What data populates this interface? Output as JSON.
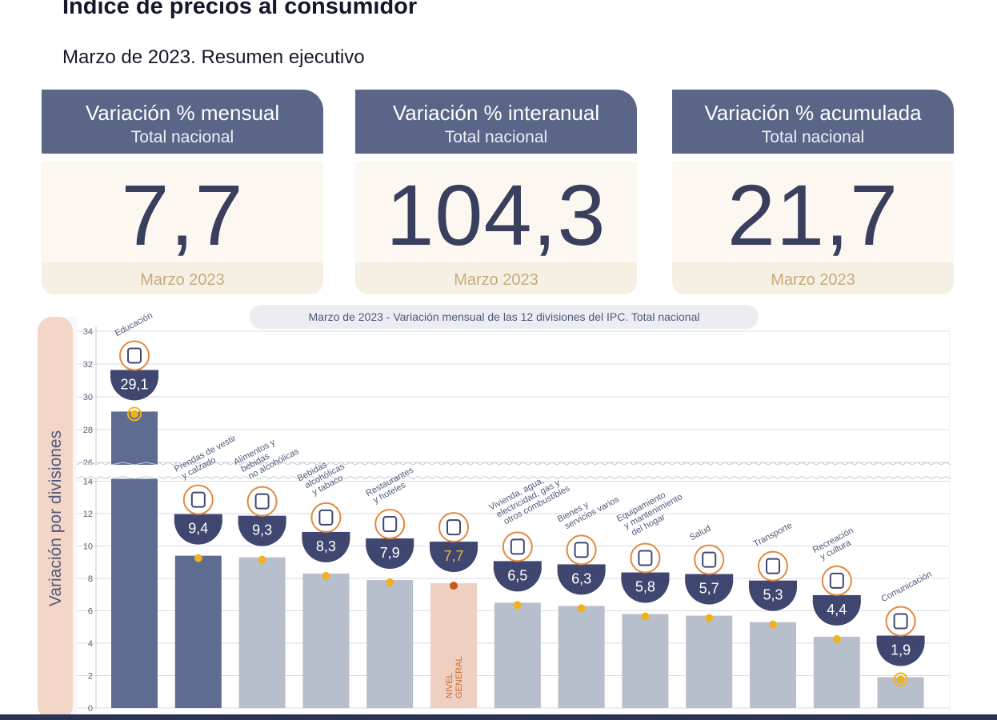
{
  "header": {
    "title": "Índice de precios al consumidor",
    "subtitle": "Marzo de 2023. Resumen ejecutivo"
  },
  "kpis": [
    {
      "title": "Variación % mensual",
      "subtitle": "Total nacional",
      "value": "7,7",
      "period": "Marzo 2023"
    },
    {
      "title": "Variación % interanual",
      "subtitle": "Total nacional",
      "value": "104,3",
      "period": "Marzo 2023"
    },
    {
      "title": "Variación % acumulada",
      "subtitle": "Total nacional",
      "value": "21,7",
      "period": "Marzo 2023"
    }
  ],
  "colors": {
    "header_blue": "#5a6588",
    "bar_dark": "#5f6c92",
    "bar_light": "#b8bfcc",
    "bar_general": "#efcfbf",
    "marker": "#efb21f",
    "marker_general": "#c95a1c",
    "axis_panel": "#f3d6c7",
    "icon_orange": "#e3883e"
  },
  "chart_data": {
    "type": "bar",
    "title": "Marzo de 2023 - Variación mensual de las 12 divisiones del IPC. Total nacional",
    "ylabel": "Variación por divisiones",
    "xlabel": "",
    "ylim": [
      0,
      34
    ],
    "axis_break": [
      14,
      26
    ],
    "yticks": [
      0,
      2,
      4,
      6,
      8,
      10,
      12,
      14,
      26,
      28,
      30,
      32,
      34
    ],
    "grid": true,
    "categories": [
      "Educación",
      "Prendas de vestir y calzado",
      "Alimentos y bebidas no alcohólicas",
      "Bebidas alcohólicas y tabaco",
      "Restaurantes y hoteles",
      "NIVEL GENERAL",
      "Vivienda, agua, electricidad, gas y otros combustibles",
      "Bienes y servicios varios",
      "Equipamiento y mantenimiento del hogar",
      "Salud",
      "Transporte",
      "Recreación y cultura",
      "Comunicación"
    ],
    "values": [
      29.1,
      9.4,
      9.3,
      8.3,
      7.9,
      7.7,
      6.5,
      6.3,
      5.8,
      5.7,
      5.3,
      4.4,
      1.9
    ],
    "value_labels": [
      "29,1",
      "9,4",
      "9,3",
      "8,3",
      "7,9",
      "7,7",
      "6,5",
      "6,3",
      "5,8",
      "5,7",
      "5,3",
      "4,4",
      "1,9"
    ],
    "category_label_lines": [
      [
        "Educación"
      ],
      [
        "Prendas de vestir",
        "y calzado"
      ],
      [
        "Alimentos y",
        "bebidas",
        "no alcohólicas"
      ],
      [
        "Bebidas",
        "alcohólicas",
        "y tabaco"
      ],
      [
        "Restaurantes",
        "y hoteles"
      ],
      [
        "NIVEL",
        "GENERAL"
      ],
      [
        "Vivienda, agua,",
        "electricidad, gas y",
        "otros combustibles"
      ],
      [
        "Bienes y",
        "servicios varios"
      ],
      [
        "Equipamiento",
        "y mantenimiento",
        "del hogar"
      ],
      [
        "Salud"
      ],
      [
        "Transporte"
      ],
      [
        "Recreación",
        "y cultura"
      ],
      [
        "Comunicación"
      ]
    ],
    "bar_styles": [
      "dark",
      "dark",
      "light",
      "light",
      "light",
      "general",
      "light",
      "light",
      "light",
      "light",
      "light",
      "light",
      "light"
    ],
    "icons": [
      "chalkboard-icon",
      "shirt-icon",
      "food-basket-icon",
      "bottles-icon",
      "cutlery-icon",
      "shopping-basket-icon",
      "lightbulb-icon",
      "comb-scissors-icon",
      "washing-machine-icon",
      "medical-cross-icon",
      "car-icon",
      "beach-umbrella-icon",
      "phone-icon"
    ]
  }
}
